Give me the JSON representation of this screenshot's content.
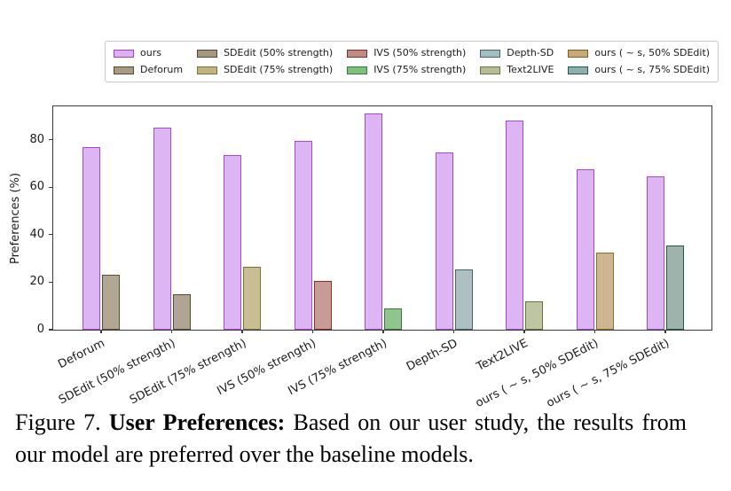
{
  "figure": {
    "caption_prefix": "Figure 7.",
    "caption_bold": "User Preferences:",
    "caption_rest": "Based on our user study, the results from our model are preferred over the baseline models."
  },
  "chart_data": {
    "type": "bar",
    "title": "",
    "xlabel": "",
    "ylabel": "Preferences (%)",
    "ylim": [
      0,
      94
    ],
    "yticks": [
      0,
      20,
      40,
      60,
      80
    ],
    "grid": false,
    "legend_position": "top",
    "categories": [
      "Deforum",
      "SDEdit (50% strength)",
      "SDEdit (75% strength)",
      "IVS (50% strength)",
      "IVS (75% strength)",
      "Depth-SD",
      "Text2LIVE",
      "ours ( ~ s, 50% SDEdit)",
      "ours ( ~ s, 75% SDEdit)"
    ],
    "series": [
      {
        "name": "ours",
        "values": [
          77,
          85,
          73.5,
          79.5,
          91,
          74.5,
          88,
          67.5,
          64.5
        ]
      },
      {
        "name": "baseline",
        "values": [
          23,
          15,
          26.5,
          20.5,
          9,
          25.5,
          12,
          32.5,
          35.5
        ]
      }
    ],
    "ours_style": {
      "fill": "#dcb5f2",
      "edge": "#a847d6"
    },
    "baseline_styles": [
      {
        "name": "Deforum",
        "fill": "#b2a695",
        "edge": "#59502c"
      },
      {
        "name": "SDEdit (50% strength)",
        "fill": "#b0a494",
        "edge": "#564c2a"
      },
      {
        "name": "SDEdit (75% strength)",
        "fill": "#c8bd93",
        "edge": "#7b7233"
      },
      {
        "name": "IVS (50% strength)",
        "fill": "#c69c94",
        "edge": "#8d2a24"
      },
      {
        "name": "IVS (75% strength)",
        "fill": "#90c48c",
        "edge": "#2f8032"
      },
      {
        "name": "Depth-SD",
        "fill": "#adbfc0",
        "edge": "#3f666c"
      },
      {
        "name": "Text2LIVE",
        "fill": "#bdc5a2",
        "edge": "#6b7540"
      },
      {
        "name": "ours ( ~ s, 50% SDEdit)",
        "fill": "#cdb693",
        "edge": "#8f6c2a"
      },
      {
        "name": "ours ( ~ s, 75% SDEdit)",
        "fill": "#9db3ab",
        "edge": "#1f5a52"
      }
    ],
    "legend": [
      {
        "label": "ours",
        "fill": "#dfaef3",
        "edge": "#9a41c8"
      },
      {
        "label": "Deforum",
        "fill": "#a89a84",
        "edge": "#55492a"
      },
      {
        "label": "SDEdit (50% strength)",
        "fill": "#a59781",
        "edge": "#544a2b"
      },
      {
        "label": "SDEdit (75% strength)",
        "fill": "#c2b381",
        "edge": "#7a7033"
      },
      {
        "label": "IVS (50% strength)",
        "fill": "#bc8d84",
        "edge": "#8c2a24"
      },
      {
        "label": "IVS (75% strength)",
        "fill": "#7fc07e",
        "edge": "#2f8032"
      },
      {
        "label": "Depth-SD",
        "fill": "#a3bdc0",
        "edge": "#3f666c"
      },
      {
        "label": "Text2LIVE",
        "fill": "#b4bd98",
        "edge": "#6b7540"
      },
      {
        "label": "ours ( ~ s, 50% SDEdit)",
        "fill": "#c9a878",
        "edge": "#7c5d20"
      },
      {
        "label": "ours ( ~ s, 75% SDEdit)",
        "fill": "#8fb0aa",
        "edge": "#1f5a55"
      }
    ]
  }
}
